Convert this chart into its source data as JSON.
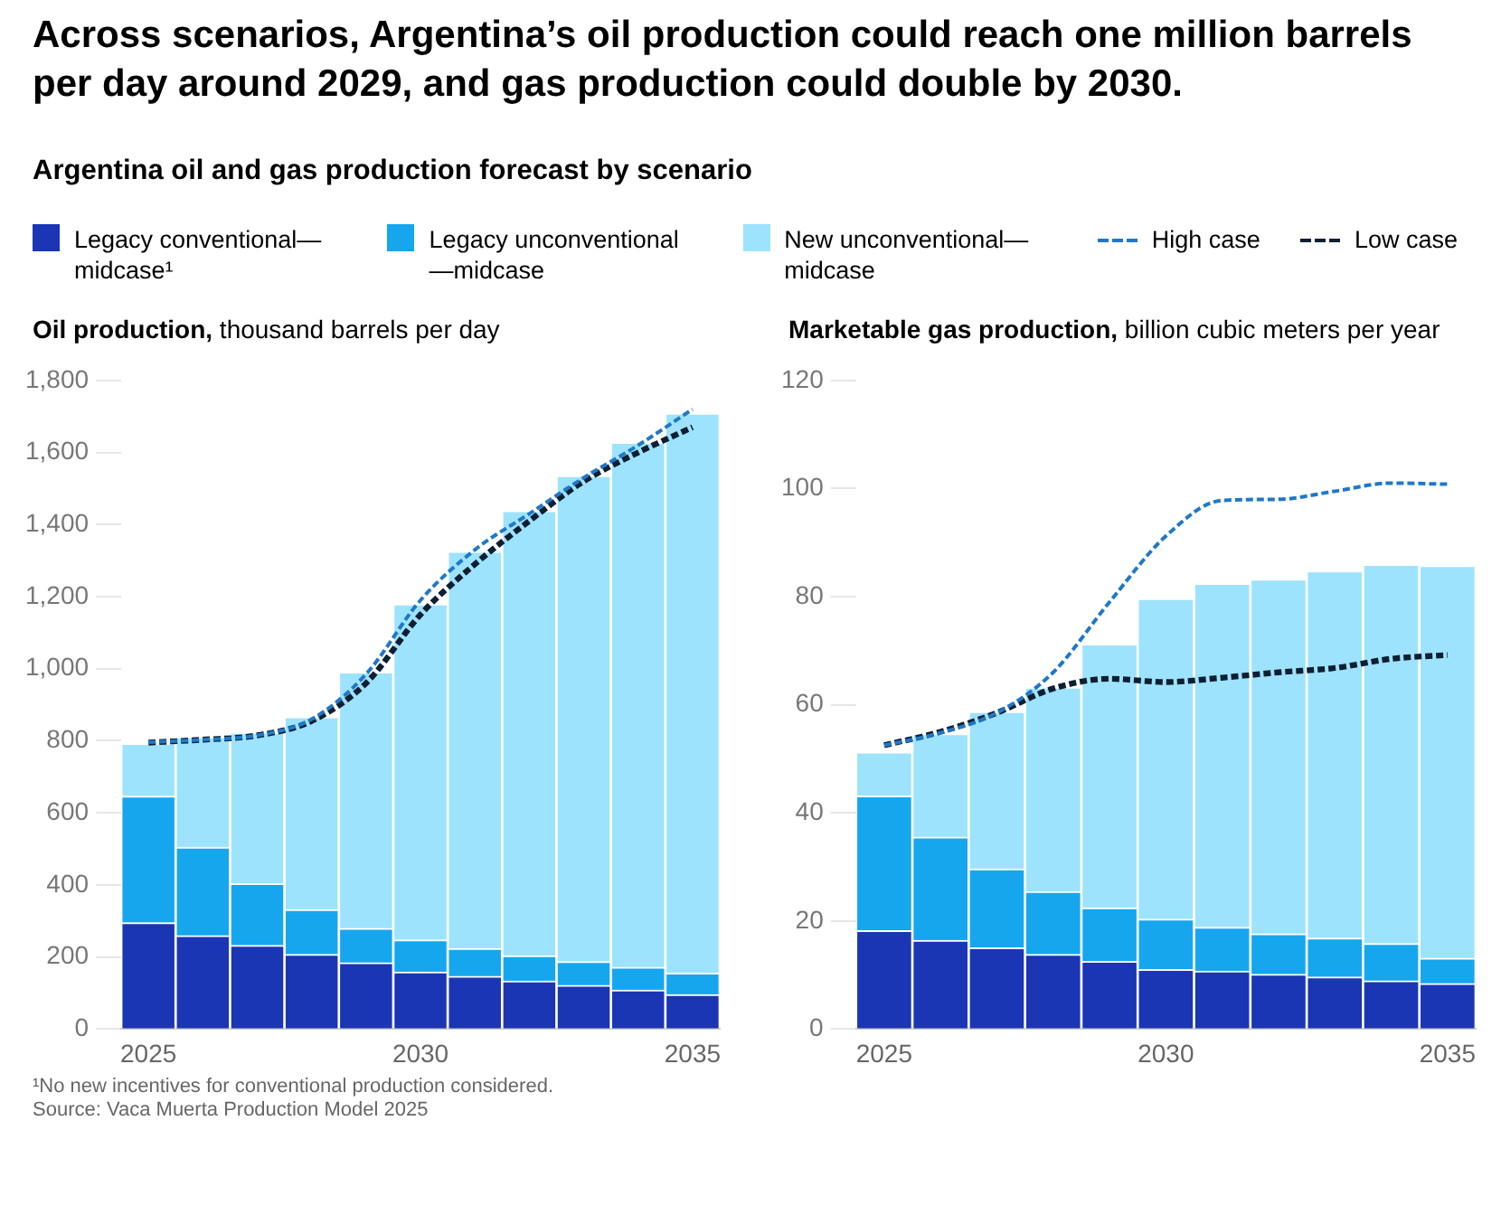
{
  "chart_data": [
    {
      "type": "bar",
      "title": "Across scenarios, Argentina’s oil production could reach one million barrels per day around 2029, and gas production could double by 2030.",
      "subtitle": "Argentina oil and gas production forecast by scenario",
      "ylabel": "Oil production, thousand barrels per day",
      "stacked": true,
      "legend": "top",
      "grid": false,
      "marker": "none",
      "categories": [
        "2025",
        null,
        null,
        null,
        null,
        "2030",
        null,
        null,
        null,
        null,
        "2035"
      ],
      "ylim": [
        0,
        1800
      ],
      "yticks": [
        0,
        200,
        400,
        600,
        800,
        {
          "value": 1000,
          "label": "1,000"
        },
        {
          "value": 1200,
          "label": "1,200"
        },
        {
          "value": 1400,
          "label": "1,400"
        },
        {
          "value": 1600,
          "label": "1,600"
        },
        {
          "value": 1800,
          "label": "1,800"
        }
      ],
      "series": [
        {
          "name": "Legacy conventional—midcase¹",
          "color": "#1a36b4",
          "values": [
            295,
            259,
            232,
            207,
            184,
            158,
            146,
            133,
            121,
            108,
            95
          ]
        },
        {
          "name": "Legacy unconventional—midcase",
          "color": "#16a6ee",
          "values": [
            351,
            245,
            171,
            124,
            95,
            89,
            77,
            70,
            66,
            63,
            60
          ]
        },
        {
          "name": "New unconventional—midcase",
          "color": "#9de3fd",
          "values": [
            146,
            306,
            420,
            535,
            711,
            932,
            1102,
            1235,
            1348,
            1456,
            1553
          ]
        },
        {
          "name": "High case",
          "type": "line",
          "line_style": "dashed",
          "color": "#1f78c8",
          "values": [
            796,
            803,
            815,
            860,
            985,
            1190,
            1330,
            1430,
            1530,
            1620,
            1720
          ]
        },
        {
          "name": "Low case",
          "type": "line",
          "line_style": "dashed",
          "color": "#0f1f33",
          "values": [
            795,
            803,
            815,
            855,
            960,
            1150,
            1290,
            1410,
            1520,
            1600,
            1670
          ]
        }
      ],
      "annotations": [
        "¹No new incentives for conventional production considered.",
        "Source: Vaca Muerta Production Model 2025"
      ]
    },
    {
      "type": "bar",
      "ylabel": "Marketable gas production, billion cubic meters per year",
      "stacked": true,
      "legend": false,
      "grid": false,
      "marker": "none",
      "categories": [
        "2025",
        null,
        null,
        null,
        null,
        "2030",
        null,
        null,
        null,
        null,
        "2035"
      ],
      "ylim": [
        0,
        120
      ],
      "yticks": [
        0,
        20,
        40,
        60,
        80,
        100,
        120
      ],
      "series": [
        {
          "color": "#1a36b4",
          "values": [
            18.2,
            16.4,
            15.0,
            13.8,
            12.5,
            11.0,
            10.7,
            10.1,
            9.6,
            8.9,
            8.4
          ]
        },
        {
          "color": "#16a6ee",
          "values": [
            24.9,
            19.1,
            14.6,
            11.6,
            9.9,
            9.3,
            8.1,
            7.5,
            7.2,
            6.9,
            4.7
          ]
        },
        {
          "color": "#9de3fd",
          "values": [
            8.1,
            19.1,
            29.1,
            37.8,
            48.8,
            59.3,
            63.6,
            65.6,
            67.9,
            70.1,
            72.6
          ]
        },
        {
          "type": "line",
          "line_style": "dashed",
          "color": "#1f78c8",
          "values": [
            52.5,
            54.8,
            58.5,
            66,
            79,
            91.2,
            97.8,
            98,
            99.5,
            101,
            100.8
          ]
        },
        {
          "type": "line",
          "line_style": "dashed",
          "color": "#0f1f33",
          "values": [
            52.5,
            55,
            58.5,
            63,
            64.8,
            64.2,
            65,
            66,
            66.8,
            68.5,
            69.2
          ]
        }
      ]
    }
  ]
}
